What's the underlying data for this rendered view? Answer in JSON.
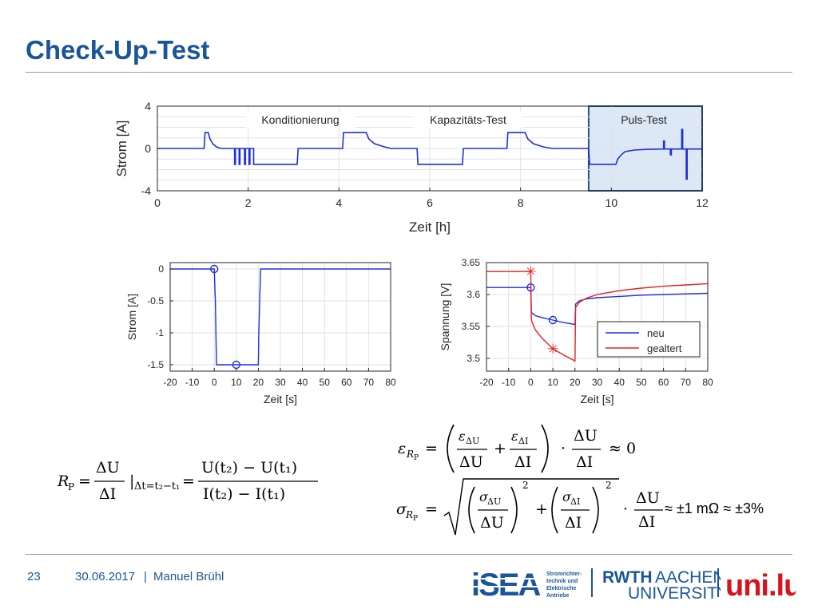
{
  "slide": {
    "title": "Check-Up-Test",
    "page_number": "23",
    "date": "30.06.2017",
    "separator": "|",
    "author": "Manuel Brühl"
  },
  "formulas": {
    "rp": "R_P = ΔU/ΔI |Δt=t2−t1 = (U(t2) − U(t1)) / (I(t2) − I(t1))",
    "eps": "ε_RP = (ε_ΔU/ΔU + ε_ΔI/ΔI) · ΔU/ΔI ≈ 0",
    "sigma": "σ_RP = sqrt((σ_ΔU/ΔU)^2 + (σ_ΔI/ΔI)^2) · ΔU/ΔI",
    "approx_value": "≈ ±1 mΩ ≈ ±3%"
  },
  "logos": {
    "isea_text": "iSEA",
    "isea_subtitle": [
      "Stromrichter-",
      "technik und",
      "Elektrische",
      "Antriebe"
    ],
    "rwth_bold": "RWTH",
    "rwth_light": "AACHEN",
    "rwth_line2": "UNIVERSITY",
    "unilu": "uni.lu"
  },
  "colors": {
    "title": "#1a5599",
    "series_blue": "#1f2ee0",
    "series_red": "#e62020",
    "highlight_fill": "#dce8f5",
    "highlight_border": "#2a4f8a"
  },
  "chart_data": [
    {
      "type": "line",
      "id": "overview",
      "xlabel": "Zeit [h]",
      "ylabel": "Strom [A]",
      "xlim": [
        0,
        12
      ],
      "ylim": [
        -4,
        4
      ],
      "xticks": [
        0,
        2,
        4,
        6,
        8,
        10,
        12
      ],
      "yticks": [
        -4,
        0,
        4
      ],
      "grid": true,
      "annotations": [
        "Konditionierung",
        "Kapazitäts-Test",
        "Puls-Test"
      ],
      "highlight_x": [
        9.5,
        12
      ],
      "series": [
        {
          "color": "#1f2ee0",
          "x": [
            0,
            1.03,
            1.05,
            1.12,
            1.16,
            1.22,
            1.3,
            1.4,
            1.6,
            1.7,
            1.7,
            1.72,
            1.72,
            1.78,
            1.8,
            1.8,
            1.82,
            1.82,
            1.9,
            1.92,
            1.92,
            1.94,
            1.94,
            2.0,
            2.02,
            2.02,
            2.04,
            2.04,
            2.12,
            2.12,
            3.08,
            3.1,
            4.08,
            4.1,
            4.6,
            4.66,
            4.78,
            5.0,
            5.15,
            5.72,
            5.74,
            6.72,
            6.74,
            7.7,
            7.72,
            8.1,
            8.16,
            8.28,
            8.5,
            8.7,
            9.5,
            9.52,
            9.6,
            10.1,
            10.14,
            10.22,
            10.3,
            10.5,
            10.8,
            11.15,
            11.15,
            11.17,
            11.17,
            11.3,
            11.3,
            11.32,
            11.32,
            11.55,
            11.55,
            11.57,
            11.57,
            11.65,
            11.65,
            11.67,
            11.67,
            11.95,
            12
          ],
          "y": [
            0,
            0,
            1.5,
            1.5,
            0.9,
            0.45,
            0.15,
            0,
            0,
            0,
            -1.5,
            -1.5,
            0,
            0,
            0,
            -1.5,
            -1.5,
            0,
            0,
            0,
            -1.5,
            -1.5,
            0,
            0,
            0,
            -1.5,
            -1.5,
            0,
            0,
            -1.5,
            -1.5,
            0,
            0,
            1.5,
            1.5,
            0.9,
            0.45,
            0.15,
            0,
            0,
            -1.5,
            -1.5,
            0,
            0,
            1.5,
            1.5,
            0.9,
            0.45,
            0.15,
            0,
            0,
            -1.5,
            -1.5,
            -1.5,
            -1.0,
            -0.6,
            -0.3,
            -0.15,
            -0.08,
            -0.05,
            0.7,
            0.7,
            -0.05,
            -0.05,
            -0.6,
            -0.6,
            -0.05,
            -0.05,
            1.8,
            1.8,
            -0.05,
            -0.05,
            -2.9,
            -2.9,
            -0.05,
            -0.05,
            -0.05
          ]
        }
      ]
    },
    {
      "type": "line",
      "id": "pulse-current",
      "xlabel": "Zeit [s]",
      "ylabel": "Strom [A]",
      "xlim": [
        -20,
        80
      ],
      "ylim": [
        -1.6,
        0.1
      ],
      "xticks": [
        -20,
        -10,
        0,
        10,
        20,
        30,
        40,
        50,
        60,
        70,
        80
      ],
      "yticks": [
        0,
        -0.5,
        -1,
        -1.5
      ],
      "ytick_labels": [
        "0",
        "-0.5",
        "-1",
        "-1.5"
      ],
      "grid": true,
      "series": [
        {
          "color": "#1f2ee0",
          "x": [
            -20,
            0,
            0.5,
            1.0,
            20,
            20.2,
            21,
            80
          ],
          "y": [
            0,
            0,
            -0.5,
            -1.5,
            -1.5,
            -1.0,
            0,
            0
          ]
        }
      ],
      "markers": [
        {
          "x": 0,
          "y": 0,
          "shape": "circle",
          "color": "#1f2ee0"
        },
        {
          "x": 10,
          "y": -1.5,
          "shape": "circle",
          "color": "#1f2ee0"
        }
      ]
    },
    {
      "type": "line",
      "id": "pulse-voltage",
      "xlabel": "Zeit [s]",
      "ylabel": "Spannung [V]",
      "xlim": [
        -20,
        80
      ],
      "ylim": [
        3.48,
        3.65
      ],
      "xticks": [
        -20,
        -10,
        0,
        10,
        20,
        30,
        40,
        50,
        60,
        70,
        80
      ],
      "yticks": [
        3.5,
        3.55,
        3.6,
        3.65
      ],
      "ytick_labels": [
        "3.5",
        "3.55",
        "3.6",
        "3.65"
      ],
      "grid": true,
      "legend": {
        "position": "lower-right",
        "entries": [
          "neu",
          "gealtert"
        ]
      },
      "series": [
        {
          "name": "neu",
          "color": "#1f2ee0",
          "x": [
            -20,
            0,
            0.3,
            2,
            5,
            10,
            15,
            20,
            20.3,
            22,
            25,
            30,
            40,
            50,
            60,
            70,
            80
          ],
          "y": [
            3.611,
            3.611,
            3.572,
            3.567,
            3.564,
            3.56,
            3.556,
            3.553,
            3.585,
            3.59,
            3.593,
            3.595,
            3.597,
            3.599,
            3.6,
            3.601,
            3.602
          ]
        },
        {
          "name": "gealtert",
          "color": "#e62020",
          "x": [
            -20,
            0,
            0.3,
            2,
            5,
            10,
            15,
            20,
            20.3,
            22,
            25,
            30,
            40,
            50,
            60,
            70,
            80
          ],
          "y": [
            3.636,
            3.636,
            3.56,
            3.545,
            3.532,
            3.515,
            3.505,
            3.496,
            3.58,
            3.588,
            3.594,
            3.6,
            3.606,
            3.61,
            3.613,
            3.615,
            3.617
          ]
        }
      ],
      "markers": [
        {
          "x": 0,
          "y": 3.611,
          "shape": "circle",
          "color": "#1f2ee0"
        },
        {
          "x": 10,
          "y": 3.56,
          "shape": "circle",
          "color": "#1f2ee0"
        },
        {
          "x": 0,
          "y": 3.636,
          "shape": "star",
          "color": "#e62020"
        },
        {
          "x": 10,
          "y": 3.515,
          "shape": "star",
          "color": "#e62020"
        }
      ]
    }
  ]
}
